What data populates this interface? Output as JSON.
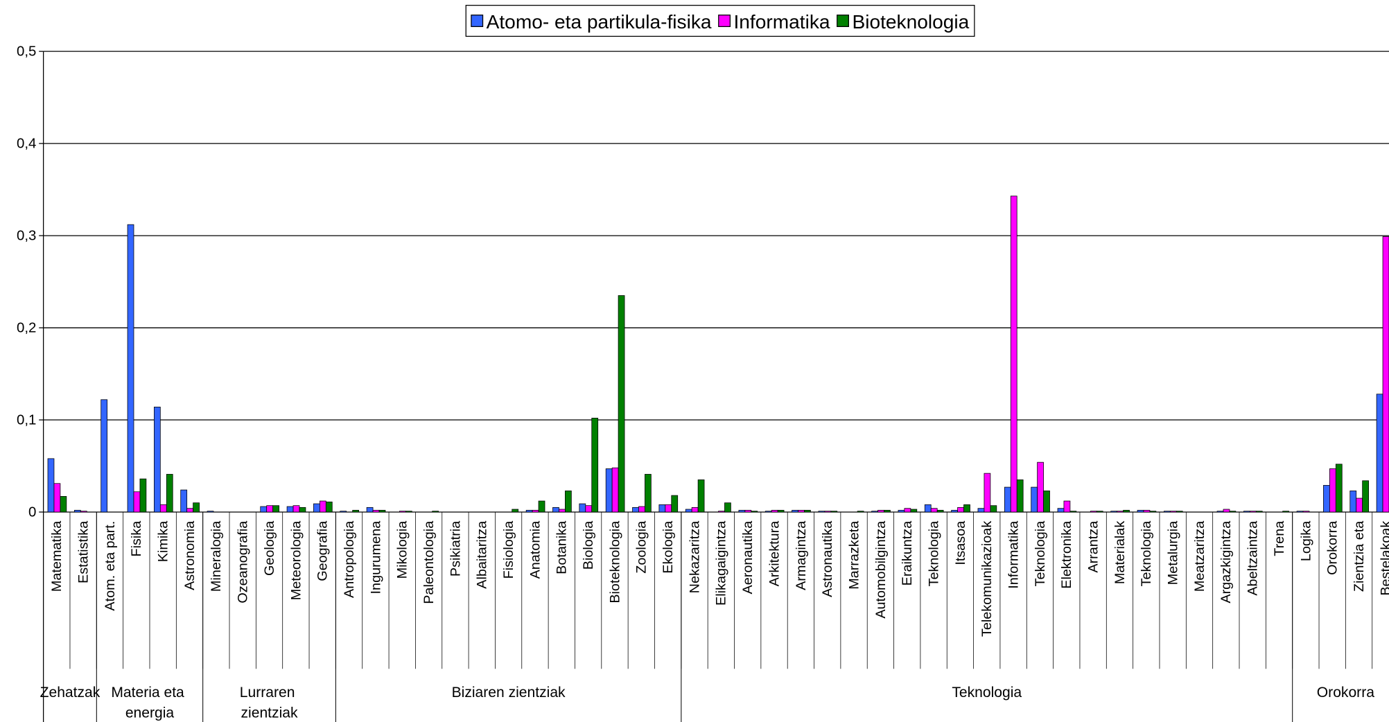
{
  "chart_data": {
    "type": "bar",
    "categories": [
      "Matematika",
      "Estatistika",
      "Atom. eta part.",
      "Fisika",
      "Kimika",
      "Astronomia",
      "Mineralogia",
      "Ozeanografia",
      "Geologia",
      "Meteorologia",
      "Geografia",
      "Antropologia",
      "Ingurumena",
      "Mikologia",
      "Paleontologia",
      "Psikiatria",
      "Albaitaritza",
      "Fisiologia",
      "Anatomia",
      "Botanika",
      "Biologia",
      "Bioteknologia",
      "Zoologia",
      "Ekologia",
      "Nekazaritza",
      "Elikagaigintza",
      "Aeronautika",
      "Arkitektura",
      "Armagintza",
      "Astronautika",
      "Marrazketa",
      "Automobilgintza",
      "Eraikuntza",
      "Teknologia",
      "Itsasoa",
      "Telekomunikazioak",
      "Informatika",
      "Teknologia",
      "Elektronika",
      "Arrantza",
      "Materialak",
      "Teknologia",
      "Metalurgia",
      "Meatzaritza",
      "Argazkigintza",
      "Abeltzaintza",
      "Trena",
      "Logika",
      "Orokorra",
      "Zientzia eta",
      "Bestelakoak"
    ],
    "groups": [
      {
        "name": "Zehatzak",
        "count": 2
      },
      {
        "name": "Materia eta energia",
        "count": 4
      },
      {
        "name": "Lurraren zientziak",
        "count": 5
      },
      {
        "name": "Biziaren zientziak",
        "count": 13
      },
      {
        "name": "Teknologia",
        "count": 23
      },
      {
        "name": "Orokorra",
        "count": 4
      }
    ],
    "series": [
      {
        "name": "Atomo- eta partikula-fisika",
        "color": "#3366ff",
        "values": [
          0.058,
          0.002,
          0.122,
          0.312,
          0.114,
          0.024,
          0.001,
          0,
          0.006,
          0.006,
          0.009,
          0.001,
          0.005,
          0,
          0,
          0,
          0,
          0,
          0.002,
          0.005,
          0.009,
          0.047,
          0.005,
          0.008,
          0.003,
          0,
          0.002,
          0.001,
          0.002,
          0.001,
          0,
          0.001,
          0.002,
          0.008,
          0.002,
          0.004,
          0.027,
          0.027,
          0.004,
          0,
          0.001,
          0.002,
          0.001,
          0,
          0.001,
          0.001,
          0,
          0.001,
          0.029,
          0.023,
          0.128
        ]
      },
      {
        "name": "Informatika",
        "color": "#ff00ff",
        "values": [
          0.031,
          0.001,
          0,
          0.022,
          0.008,
          0.004,
          0,
          0,
          0.007,
          0.007,
          0.012,
          0,
          0.002,
          0.001,
          0,
          0,
          0,
          0,
          0.002,
          0.003,
          0.007,
          0.048,
          0.006,
          0.008,
          0.005,
          0.001,
          0.002,
          0.002,
          0.002,
          0.001,
          0,
          0.002,
          0.004,
          0.004,
          0.005,
          0.042,
          0.343,
          0.054,
          0.012,
          0.001,
          0.001,
          0.002,
          0.001,
          0,
          0.003,
          0.001,
          0,
          0.001,
          0.047,
          0.015,
          0.299
        ]
      },
      {
        "name": "Bioteknologia",
        "color": "#008000",
        "values": [
          0.017,
          0,
          0,
          0.036,
          0.041,
          0.01,
          0,
          0,
          0.007,
          0.005,
          0.011,
          0.002,
          0.002,
          0.001,
          0.001,
          0,
          0,
          0.003,
          0.012,
          0.023,
          0.102,
          0.235,
          0.041,
          0.018,
          0.035,
          0.01,
          0.001,
          0.002,
          0.002,
          0.001,
          0.001,
          0.002,
          0.003,
          0.002,
          0.008,
          0.007,
          0.035,
          0.023,
          0.001,
          0.001,
          0.002,
          0.001,
          0.001,
          0,
          0.001,
          0.001,
          0.001,
          0,
          0.052,
          0.034,
          null
        ]
      }
    ],
    "ylim": [
      0,
      0.5
    ],
    "yticks": [
      0,
      {
        "value": 0.1,
        "label": "0,1"
      },
      {
        "value": 0.2,
        "label": "0,2"
      },
      {
        "value": 0.3,
        "label": "0,3"
      },
      {
        "value": 0.4,
        "label": "0,4"
      },
      {
        "value": 0.5,
        "label": "0,5"
      }
    ],
    "grid": true,
    "legend": "top"
  }
}
